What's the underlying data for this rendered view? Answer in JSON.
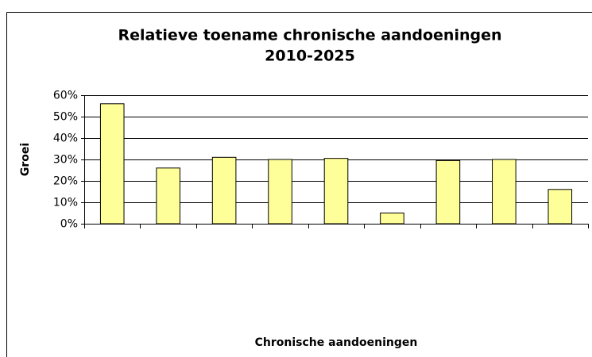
{
  "chart_data": {
    "type": "bar",
    "title": [
      "Relatieve toename chronische aandoeningen",
      "2010-2025"
    ],
    "x_label": "Chronische aandoeningen",
    "y_label": "Groei",
    "categories": [
      null,
      null,
      null,
      null,
      null,
      null,
      null,
      null,
      null
    ],
    "values": [
      56,
      26,
      31,
      30,
      30.5,
      5,
      29.5,
      30,
      16
    ],
    "color": "#ffff99",
    "ylim": [
      0,
      60
    ],
    "yticks": [
      {
        "value": 0,
        "label": "0%"
      },
      {
        "value": 10,
        "label": "10%"
      },
      {
        "value": 20,
        "label": "20%"
      },
      {
        "value": 30,
        "label": "30%"
      },
      {
        "value": 40,
        "label": "40%"
      },
      {
        "value": 50,
        "label": "50%"
      },
      {
        "value": 60,
        "label": "60%"
      }
    ],
    "grid": true
  }
}
